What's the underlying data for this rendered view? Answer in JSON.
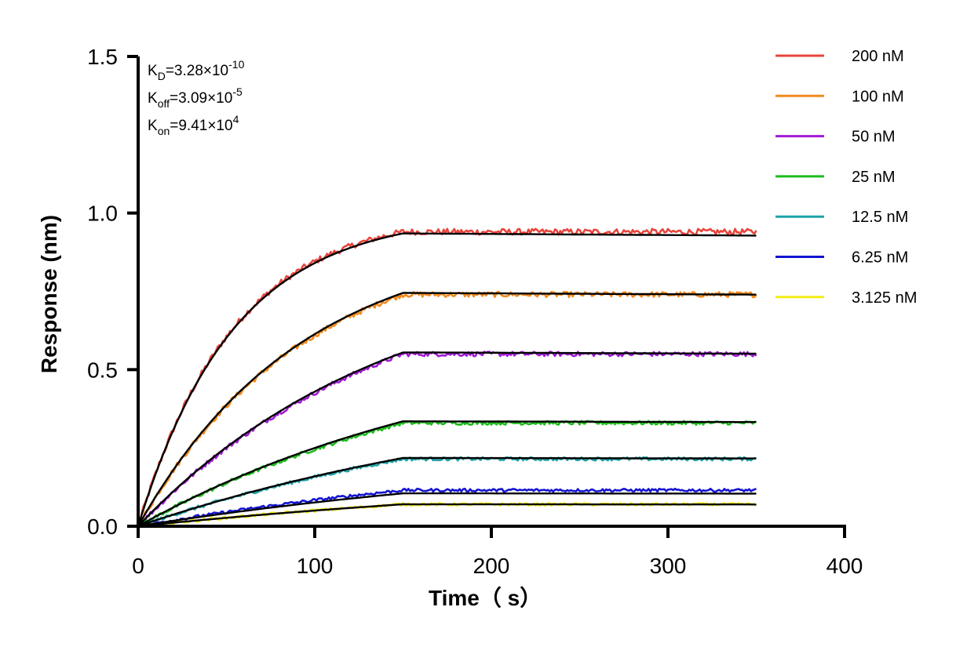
{
  "chart_data": {
    "type": "line",
    "xlabel": "Time（ s）",
    "ylabel": "Response (nm)",
    "xlim": [
      0,
      400
    ],
    "ylim": [
      0,
      1.5
    ],
    "x_ticks": [
      0,
      100,
      200,
      300,
      400
    ],
    "y_ticks": [
      0.0,
      0.5,
      1.0,
      1.5
    ],
    "x_tick_labels": [
      "0",
      "100",
      "200",
      "300",
      "400"
    ],
    "y_tick_labels": [
      "0.0",
      "0.5",
      "1.0",
      "1.5"
    ],
    "association_end": 150,
    "time_end": 350,
    "grid": false,
    "legend_position": "right",
    "annotations": [
      {
        "symbol": "K",
        "sub": "D",
        "text": "=3.28×10",
        "sup": "-10"
      },
      {
        "symbol": "K",
        "sub": "off",
        "text": "=3.09×10",
        "sup": "-5"
      },
      {
        "symbol": "K",
        "sub": "on",
        "text": "=9.41×10",
        "sup": "4"
      }
    ],
    "fit_color": "#000000",
    "series": [
      {
        "name": "200 nM",
        "color": "#e8453c",
        "plateau": 0.94,
        "fit_plateau": 0.935,
        "k": 0.0185,
        "shape": [
          1.0
        ]
      },
      {
        "name": "100 nM",
        "color": "#f28a1e",
        "plateau": 0.74,
        "fit_plateau": 0.745,
        "k": 0.0108,
        "shape": [
          1.0
        ]
      },
      {
        "name": "50 nM",
        "color": "#a21ad6",
        "plateau": 0.55,
        "fit_plateau": 0.555,
        "k": 0.007,
        "shape": [
          1.0
        ]
      },
      {
        "name": "25 nM",
        "color": "#1bbd1b",
        "plateau": 0.33,
        "fit_plateau": 0.335,
        "k": 0.005,
        "shape": [
          1.0
        ]
      },
      {
        "name": "12.5 nM",
        "color": "#1fa3a8",
        "plateau": 0.215,
        "fit_plateau": 0.218,
        "k": 0.004,
        "shape": [
          1.0
        ]
      },
      {
        "name": "6.25 nM",
        "color": "#1414d2",
        "plateau": 0.115,
        "fit_plateau": 0.105,
        "k": 0.0035,
        "shape": [
          1.0
        ]
      },
      {
        "name": "3.125 nM",
        "color": "#f5ee16",
        "plateau": 0.07,
        "fit_plateau": 0.07,
        "k": 0.003,
        "shape": [
          1.0
        ]
      }
    ]
  }
}
